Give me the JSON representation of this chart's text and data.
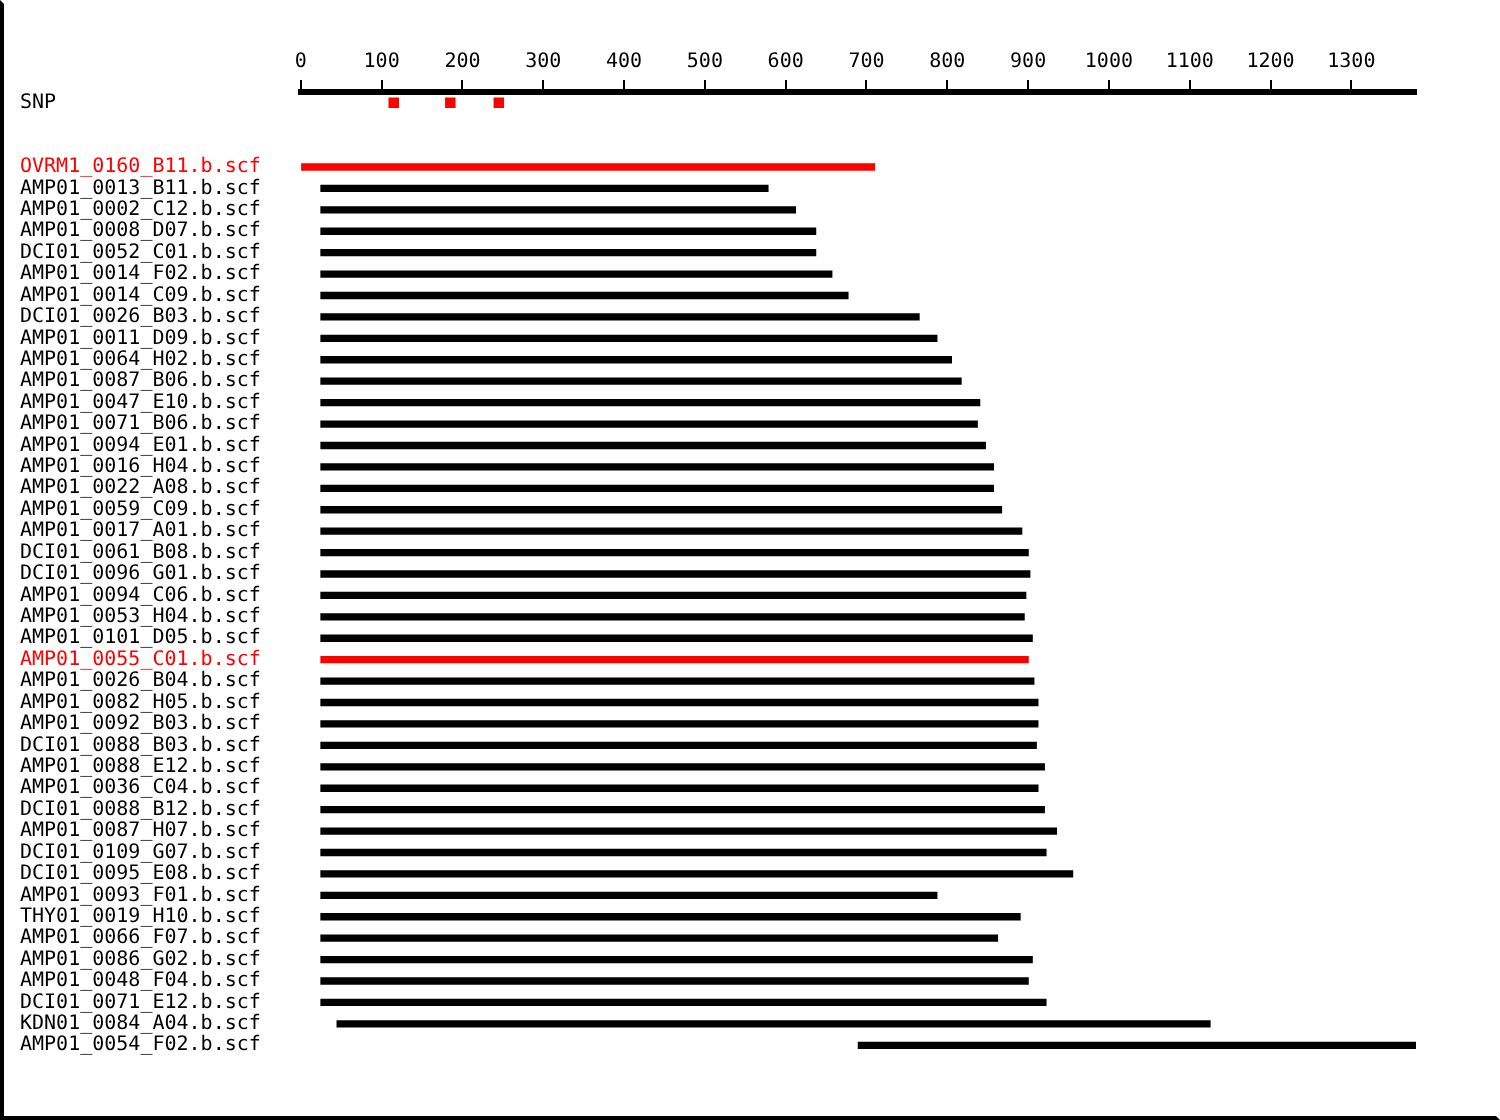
{
  "chart_data": {
    "type": "bar",
    "orientation": "horizontal",
    "categories": [
      "SNP",
      null,
      null,
      "OVRM1_0160_B11.b.scf",
      "AMP01_0013_B11.b.scf",
      "AMP01_0002_C12.b.scf",
      "AMP01_0008_D07.b.scf",
      "DCI01_0052_C01.b.scf",
      "AMP01_0014_F02.b.scf",
      "AMP01_0014_C09.b.scf",
      "DCI01_0026_B03.b.scf",
      "AMP01_0011_D09.b.scf",
      "AMP01_0064_H02.b.scf",
      "AMP01_0087_B06.b.scf",
      "AMP01_0047_E10.b.scf",
      "AMP01_0071_B06.b.scf",
      "AMP01_0094_E01.b.scf",
      "AMP01_0016_H04.b.scf",
      "AMP01_0022_A08.b.scf",
      "AMP01_0059_C09.b.scf",
      "AMP01_0017_A01.b.scf",
      "DCI01_0061_B08.b.scf",
      "DCI01_0096_G01.b.scf",
      "AMP01_0094_C06.b.scf",
      "AMP01_0053_H04.b.scf",
      "AMP01_0101_D05.b.scf",
      "AMP01_0055_C01.b.scf",
      "AMP01_0026_B04.b.scf",
      "AMP01_0082_H05.b.scf",
      "AMP01_0092_B03.b.scf",
      "DCI01_0088_B03.b.scf",
      "AMP01_0088_E12.b.scf",
      "AMP01_0036_C04.b.scf",
      "DCI01_0088_B12.b.scf",
      "AMP01_0087_H07.b.scf",
      "DCI01_0109_G07.b.scf",
      "DCI01_0095_E08.b.scf",
      "AMP01_0093_F01.b.scf",
      "THY01_0019_H10.b.scf",
      "AMP01_0066_F07.b.scf",
      "AMP01_0086_G02.b.scf",
      "AMP01_0048_F04.b.scf",
      "DCI01_0071_E12.b.scf",
      "KDN01_0084_A04.b.scf",
      "AMP01_0054_F02.b.scf"
    ],
    "series": [
      {
        "base": [
          null,
          null,
          null,
          0,
          25,
          25,
          25,
          25,
          25,
          25,
          25,
          25,
          25,
          25,
          25,
          25,
          25,
          25,
          25,
          25,
          25,
          25,
          25,
          25,
          25,
          25,
          25,
          25,
          25,
          25,
          25,
          25,
          25,
          25,
          25,
          25,
          25,
          25,
          25,
          25,
          25,
          25,
          25,
          45,
          690
        ],
        "values": [
          null,
          null,
          null,
          710,
          553,
          587,
          612,
          612,
          632,
          652,
          740,
          762,
          780,
          792,
          815,
          812,
          822,
          832,
          832,
          842,
          867,
          875,
          877,
          872,
          870,
          880,
          875,
          882,
          887,
          887,
          885,
          895,
          887,
          895,
          910,
          897,
          930,
          762,
          865,
          837,
          880,
          875,
          897,
          1080,
          690
        ],
        "colors": [
          null,
          null,
          null,
          "#ff0000",
          "#000000",
          "#000000",
          "#000000",
          "#000000",
          "#000000",
          "#000000",
          "#000000",
          "#000000",
          "#000000",
          "#000000",
          "#000000",
          "#000000",
          "#000000",
          "#000000",
          "#000000",
          "#000000",
          "#000000",
          "#000000",
          "#000000",
          "#000000",
          "#000000",
          "#000000",
          "#ff0000",
          "#000000",
          "#000000",
          "#000000",
          "#000000",
          "#000000",
          "#000000",
          "#000000",
          "#000000",
          "#000000",
          "#000000",
          "#000000",
          "#000000",
          "#000000",
          "#000000",
          "#000000",
          "#000000",
          "#000000",
          "#000000"
        ]
      },
      {
        "type": "scatter",
        "x": [
          "SNP",
          "SNP",
          "SNP"
        ],
        "values": [
          115,
          185,
          245
        ],
        "color": "#ff0000",
        "marker": "square"
      }
    ],
    "xlim": [
      0,
      1380
    ],
    "xticks": [
      0,
      100,
      200,
      300,
      400,
      500,
      600,
      700,
      800,
      900,
      1000,
      1100,
      1200,
      1300
    ],
    "grid": false,
    "legend": false
  }
}
